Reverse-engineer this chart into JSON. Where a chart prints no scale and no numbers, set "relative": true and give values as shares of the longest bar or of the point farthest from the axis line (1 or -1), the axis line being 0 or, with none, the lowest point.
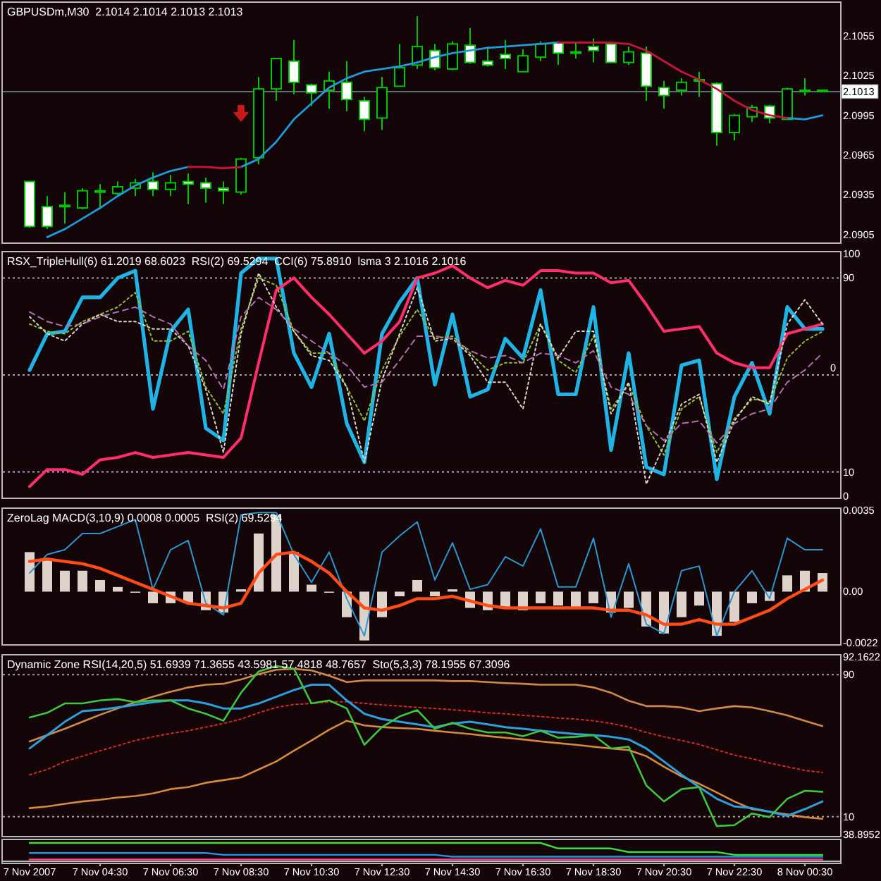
{
  "chart_data": [
    {
      "type": "candlestick",
      "title": "GBPUSDm,M30  2.1014 2.1014 2.1013 2.1013",
      "categories": [
        null,
        null,
        null,
        null,
        null,
        null,
        null,
        null,
        null,
        null,
        null,
        null,
        null,
        null,
        null,
        null,
        null,
        null,
        null,
        null,
        null,
        null,
        null,
        null,
        null,
        null,
        null,
        null,
        null,
        null,
        null,
        null,
        null,
        null,
        null,
        null,
        null,
        null,
        null,
        null,
        null,
        null,
        null,
        null,
        null,
        null
      ],
      "ylim": [
        2.09,
        2.1079
      ],
      "yticks": [
        2.1055,
        2.1025,
        2.0995,
        2.0965,
        2.0935,
        2.0905
      ],
      "tick_labels": "y",
      "ref_lines": [
        {
          "axis": "y",
          "value": 2.1013,
          "label": "2.1013",
          "color": "#5f7070",
          "line_style": "solid"
        }
      ],
      "series": [
        {
          "color": "#00c800",
          "colors": [
            "#ffffff",
            "#ffffff",
            "#ffffff",
            "#000000",
            "#000000",
            "#000000",
            "#000000",
            "#ffffff",
            "#000000",
            "#ffffff",
            "#ffffff",
            "#ffffff",
            "#000000",
            "#000000",
            "#000000",
            "#ffffff",
            "#ffffff",
            "#000000",
            "#ffffff",
            "#ffffff",
            "#000000",
            "#000000",
            "#000000",
            "#ffffff",
            "#000000",
            "#ffffff",
            "#ffffff",
            "#ffffff",
            "#000000",
            "#000000",
            "#ffffff",
            "#000000",
            "#ffffff",
            "#ffffff",
            "#000000",
            "#ffffff",
            "#ffffff",
            "#000000",
            "#000000",
            "#ffffff",
            "#000000",
            "#000000",
            "#ffffff",
            "#000000",
            "#000000",
            "#ffffff"
          ],
          "ohlc": [
            [
              2.0945,
              2.0945,
              2.091,
              2.0911
            ],
            [
              2.0926,
              2.0934,
              2.0909,
              2.0911
            ],
            [
              2.0927,
              2.0937,
              2.0913,
              2.0927
            ],
            [
              2.0925,
              2.094,
              2.0924,
              2.0938
            ],
            [
              2.0937,
              2.0943,
              2.0924,
              2.0938
            ],
            [
              2.0936,
              2.0945,
              2.0935,
              2.0941
            ],
            [
              2.094,
              2.0947,
              2.0934,
              2.0944
            ],
            [
              2.0945,
              2.0952,
              2.0934,
              2.0939
            ],
            [
              2.0939,
              2.095,
              2.0934,
              2.0944
            ],
            [
              2.0945,
              2.0951,
              2.0928,
              2.0943
            ],
            [
              2.0944,
              2.0948,
              2.0929,
              2.094
            ],
            [
              2.094,
              2.0945,
              2.0928,
              2.0938
            ],
            [
              2.0937,
              2.0963,
              2.0935,
              2.0962
            ],
            [
              2.0963,
              2.1024,
              2.0958,
              2.1015
            ],
            [
              2.1015,
              2.1038,
              2.1006,
              2.1038
            ],
            [
              2.1036,
              2.1052,
              2.1011,
              2.102
            ],
            [
              2.1018,
              2.1019,
              2.1002,
              2.1012
            ],
            [
              2.1014,
              2.1028,
              2.1,
              2.1021
            ],
            [
              2.102,
              2.1036,
              2.0998,
              2.1007
            ],
            [
              2.1006,
              2.1009,
              2.0983,
              2.0992
            ],
            [
              2.0993,
              2.1024,
              2.0984,
              2.1016
            ],
            [
              2.1017,
              2.1049,
              2.1017,
              2.1031
            ],
            [
              2.1033,
              2.107,
              2.103,
              2.1047
            ],
            [
              2.1044,
              2.1049,
              2.1029,
              2.1031
            ],
            [
              2.103,
              2.1051,
              2.1029,
              2.1049
            ],
            [
              2.1048,
              2.1061,
              2.1034,
              2.1035
            ],
            [
              2.1036,
              2.1047,
              2.1032,
              2.1033
            ],
            [
              2.1041,
              2.1052,
              2.103,
              2.1038
            ],
            [
              2.1028,
              2.1045,
              2.1028,
              2.104
            ],
            [
              2.1039,
              2.1051,
              2.1036,
              2.1049
            ],
            [
              2.105,
              2.1051,
              2.1033,
              2.1042
            ],
            [
              2.1042,
              2.105,
              2.1038,
              2.1043
            ],
            [
              2.1047,
              2.1053,
              2.1035,
              2.1044
            ],
            [
              2.1049,
              2.1049,
              2.1035,
              2.1035
            ],
            [
              2.1035,
              2.1047,
              2.1033,
              2.1043
            ],
            [
              2.1042,
              2.1047,
              2.1006,
              2.1017
            ],
            [
              2.1016,
              2.1021,
              2.1,
              2.101
            ],
            [
              2.1014,
              2.1023,
              2.101,
              2.102
            ],
            [
              2.1021,
              2.1028,
              2.1009,
              2.1022
            ],
            [
              2.1019,
              2.102,
              2.0972,
              2.0982
            ],
            [
              2.0982,
              2.0996,
              2.0976,
              2.0995
            ],
            [
              2.0994,
              2.1003,
              2.099,
              2.1001
            ],
            [
              2.1002,
              2.1003,
              2.0989,
              2.0993
            ],
            [
              2.0992,
              2.1016,
              2.0992,
              2.1015
            ],
            [
              2.1013,
              2.1023,
              2.101,
              2.1014
            ],
            [
              2.1014,
              2.1014,
              2.1013,
              2.1013
            ]
          ]
        },
        {
          "type": "line",
          "color": "#1e9bd7",
          "values": [
            null,
            2.0903,
            2.0909,
            2.0917,
            2.0925,
            2.0934,
            2.0942,
            2.0948,
            2.0953,
            2.0956,
            null,
            null,
            2.0956,
            2.0962,
            2.0975,
            2.0992,
            2.1004,
            2.1016,
            2.1023,
            2.1028,
            2.103,
            2.1032,
            2.1035,
            2.1039,
            2.1042,
            2.1044,
            2.1046,
            2.1047,
            2.1048,
            2.1049,
            2.105,
            null,
            null,
            null,
            null,
            null,
            null,
            null,
            null,
            null,
            null,
            null,
            null,
            2.0993,
            2.0992,
            2.0995
          ]
        },
        {
          "type": "line",
          "color": "#c8143c",
          "values": [
            null,
            null,
            null,
            null,
            null,
            null,
            null,
            null,
            null,
            2.0956,
            2.0956,
            2.0955,
            2.0956,
            null,
            null,
            null,
            null,
            null,
            null,
            null,
            null,
            null,
            null,
            null,
            null,
            null,
            null,
            null,
            null,
            null,
            2.105,
            2.105,
            2.105,
            2.105,
            2.1049,
            2.1044,
            2.1036,
            2.1028,
            2.1022,
            2.1015,
            2.1006,
            2.0999,
            2.0995,
            2.0993,
            null,
            null
          ]
        },
        {
          "type": "scatter",
          "marker": "triangle",
          "color": "#c81818",
          "values": [
            null,
            null,
            null,
            null,
            null,
            null,
            null,
            null,
            null,
            null,
            null,
            null,
            2.0996,
            null,
            null,
            null,
            null,
            null,
            null,
            null,
            null,
            null,
            null,
            null,
            null,
            null,
            null,
            null,
            null,
            null,
            null,
            null,
            null,
            null,
            null,
            null,
            null,
            null,
            null,
            null,
            null,
            null,
            null,
            null,
            null,
            null
          ]
        }
      ]
    },
    {
      "type": "line",
      "title": "RSX_TripleHull(6) 61.2019 68.6023  RSI(2) 69.5294  CCI(6) 75.8910  lsma 3 2.1016 2.1016",
      "categories": [
        null,
        null,
        null,
        null,
        null,
        null,
        null,
        null,
        null,
        null,
        null,
        null,
        null,
        null,
        null,
        null,
        null,
        null,
        null,
        null,
        null,
        null,
        null,
        null,
        null,
        null,
        null,
        null,
        null,
        null,
        null,
        null,
        null,
        null,
        null,
        null,
        null,
        null,
        null,
        null,
        null,
        null,
        null,
        null,
        null,
        null
      ],
      "ylim": [
        0,
        100
      ],
      "yticks": [
        100,
        90,
        10,
        0
      ],
      "tick_labels": "y",
      "ref_lines": [
        {
          "axis": "y",
          "value": 90,
          "color": "#a0a0a0",
          "line_style": "dotted"
        },
        {
          "axis": "y",
          "value": 50,
          "color": "#a0a0a0",
          "line_style": "dotted"
        },
        {
          "axis": "y",
          "value": 10,
          "color": "#a8a8d8",
          "line_style": "dotted"
        }
      ],
      "annotations": [
        {
          "text": "0",
          "y": 50
        }
      ],
      "series": [
        {
          "color": "#1eb4e6",
          "line_style": "solid",
          "values": [
            52,
            67,
            68,
            82,
            82,
            90,
            93,
            36,
            68,
            77,
            28,
            23,
            92,
            98,
            98,
            59,
            45,
            67,
            30,
            14,
            67,
            80,
            90,
            46,
            75,
            41,
            44,
            65,
            57,
            85,
            42,
            42,
            78,
            19,
            59,
            12,
            9,
            54,
            56,
            7,
            41,
            55,
            34,
            78,
            69,
            69
          ]
        },
        {
          "color": "#ff2d6e",
          "line_style": "solid",
          "values": [
            4,
            11,
            11,
            9,
            15,
            16,
            18,
            16,
            17,
            18,
            17,
            16,
            24,
            55,
            85,
            90,
            82,
            75,
            67,
            59,
            64,
            72,
            90,
            92,
            95,
            90,
            86,
            89,
            87,
            93,
            93,
            92,
            92,
            88,
            89,
            79,
            68,
            69,
            70,
            59,
            55,
            53,
            53,
            67,
            69,
            71
          ]
        },
        {
          "color": "#90c030",
          "line_style": "dotted",
          "values": [
            71,
            68,
            67,
            72,
            75,
            78,
            84,
            64,
            64,
            68,
            45,
            34,
            69,
            90,
            87,
            68,
            59,
            59,
            45,
            31,
            52,
            66,
            77,
            65,
            66,
            59,
            52,
            55,
            55,
            71,
            56,
            51,
            66,
            36,
            46,
            29,
            17,
            36,
            41,
            18,
            32,
            40,
            39,
            57,
            64,
            68
          ]
        },
        {
          "color": "#d8d8c0",
          "line_style": "dotted",
          "values": [
            74,
            67,
            64,
            71,
            75,
            72,
            72,
            69,
            69,
            62,
            44,
            18,
            67,
            92,
            78,
            68,
            58,
            56,
            45,
            14,
            48,
            67,
            86,
            64,
            65,
            58,
            47,
            47,
            36,
            71,
            57,
            68,
            68,
            34,
            47,
            5,
            21,
            38,
            42,
            14,
            31,
            41,
            38,
            71,
            81,
            71
          ]
        },
        {
          "color": "#b070b0",
          "line_style": "dashed",
          "values": [
            76,
            72,
            70,
            71,
            74,
            76,
            78,
            74,
            71,
            62,
            56,
            44,
            74,
            82,
            77,
            69,
            64,
            59,
            54,
            45,
            47,
            56,
            66,
            66,
            65,
            60,
            57,
            58,
            55,
            59,
            58,
            55,
            60,
            45,
            42,
            29,
            23,
            30,
            31,
            22,
            30,
            34,
            36,
            47,
            52,
            59
          ]
        }
      ]
    },
    {
      "type": "bar",
      "title": "ZeroLag MACD(3,10,9) 0.0008 0.0005  RSI(2) 69.5294",
      "categories": [
        null,
        null,
        null,
        null,
        null,
        null,
        null,
        null,
        null,
        null,
        null,
        null,
        null,
        null,
        null,
        null,
        null,
        null,
        null,
        null,
        null,
        null,
        null,
        null,
        null,
        null,
        null,
        null,
        null,
        null,
        null,
        null,
        null,
        null,
        null,
        null,
        null,
        null,
        null,
        null,
        null,
        null,
        null,
        null,
        null,
        null
      ],
      "ylim": [
        -0.0022,
        0.0035
      ],
      "yticks": [
        0.0035,
        {
          "value": 0,
          "label": "0.00"
        },
        -0.0022
      ],
      "tick_labels": "y",
      "series": [
        {
          "color": "#ddd3cb",
          "values": [
            0.0017,
            0.0014,
            0.0009,
            0.0009,
            0.0005,
            0.0002,
            0,
            -0.0005,
            -0.0005,
            -0.0005,
            -0.0008,
            -0.0009,
            0.0001,
            0.0025,
            0.0033,
            0.0017,
            0.0003,
            0,
            -0.0011,
            -0.0021,
            -0.0011,
            -0.0002,
            0.0005,
            -0.0002,
            0.0001,
            -0.0007,
            -0.0008,
            -0.0007,
            -0.0008,
            -0.0005,
            -0.0006,
            -0.0007,
            -0.0005,
            -0.0009,
            -0.0007,
            -0.0015,
            -0.0018,
            -0.0011,
            -0.0006,
            -0.0019,
            -0.0013,
            -0.0005,
            -0.0004,
            0.0007,
            0.0009,
            0.0008
          ]
        },
        {
          "type": "line",
          "color": "#2b96cf",
          "values": [
            0.0008,
            0.0016,
            0.0018,
            0.0025,
            0.0025,
            0.0028,
            0.0031,
            0.0001,
            0.0018,
            0.0022,
            -0.0005,
            -0.001,
            0.0033,
            0.0034,
            0.0034,
            0.0016,
            0.0004,
            0.0017,
            -0.0003,
            -0.0019,
            0.0017,
            0.0024,
            0.003,
            0.0005,
            0.0021,
            0.0001,
            0.0003,
            0.0015,
            0.0011,
            0.0027,
            0.0002,
            0.0002,
            0.0023,
            -0.0011,
            0.0012,
            -0.0014,
            -0.0018,
            0.0009,
            0.0011,
            -0.0019,
            0,
            0.0009,
            -0.0003,
            0.0023,
            0.0018,
            0.0018
          ]
        },
        {
          "type": "line",
          "color": "#ff4b14",
          "values": [
            0.0013,
            0.0014,
            0.0013,
            0.0012,
            0.001,
            0.0007,
            0.0004,
            0.0001,
            -0.0002,
            -0.0005,
            -0.0006,
            -0.0007,
            -0.0005,
            0.0008,
            0.0016,
            0.0017,
            0.0013,
            0.0008,
            0,
            -0.0007,
            -0.0008,
            -0.0006,
            -0.0003,
            -0.0003,
            -0.0002,
            -0.0004,
            -0.0006,
            -0.0007,
            -0.0007,
            -0.0007,
            -0.0007,
            -0.0007,
            -0.0007,
            -0.0008,
            -0.0008,
            -0.001,
            -0.0014,
            -0.0014,
            -0.0012,
            -0.0014,
            -0.0014,
            -0.0011,
            -0.0008,
            -0.0003,
            0.0001,
            0.0005
          ]
        }
      ]
    },
    {
      "type": "line",
      "title": "Dynamic Zone RSI(14,20,5) 51.6939 71.3655 43.5981 57.4818 48.7657  Sto(5,3,3) 78.1955 67.3096",
      "categories": [
        null,
        null,
        null,
        null,
        null,
        null,
        null,
        null,
        null,
        null,
        null,
        null,
        null,
        null,
        null,
        null,
        null,
        null,
        null,
        null,
        null,
        null,
        null,
        null,
        null,
        null,
        null,
        null,
        null,
        null,
        null,
        null,
        null,
        null,
        null,
        null,
        null,
        null,
        null,
        null,
        null,
        null,
        null,
        null,
        null,
        null
      ],
      "ylim": [
        38.8952,
        92.1622
      ],
      "yticks": [
        92.1622,
        38.8952
      ],
      "y2lim": [
        0,
        100
      ],
      "y2ticks": [
        90,
        10
      ],
      "tick_labels": "y",
      "ref_lines": [
        {
          "axis": "y2",
          "value": 90,
          "color": "#a0a0a0",
          "line_style": "dotted"
        },
        {
          "axis": "y2",
          "value": 10,
          "color": "#a0a0a0",
          "line_style": "dotted"
        }
      ],
      "series": [
        {
          "color": "#d08a48",
          "line_style": "solid",
          "values": [
            66.8,
            68.7,
            70.6,
            72.7,
            74.8,
            76.7,
            78.6,
            80.2,
            81.7,
            83.0,
            83.8,
            84.1,
            85.4,
            87.0,
            88.3,
            88.6,
            88.1,
            86.5,
            84.6,
            85.1,
            85.1,
            85.1,
            85.1,
            85.1,
            84.9,
            84.9,
            84.6,
            84.3,
            84.1,
            83.8,
            83.8,
            83.8,
            83.0,
            81.4,
            79.0,
            77.4,
            77.4,
            77.0,
            75.9,
            76.7,
            77.4,
            77.0,
            75.9,
            74.6,
            73.0,
            71.4
          ]
        },
        {
          "color": "#d22828",
          "line_style": "dotted",
          "values": [
            56.8,
            58.4,
            60.8,
            62.4,
            64.0,
            65.5,
            67.1,
            68.2,
            69.2,
            70.0,
            71.1,
            72.2,
            73.5,
            75.4,
            77.0,
            77.9,
            78.2,
            78.7,
            78.7,
            78.2,
            77.8,
            77.4,
            77.0,
            76.7,
            76.3,
            75.9,
            75.4,
            75.1,
            74.6,
            74.3,
            73.8,
            73.5,
            73.0,
            72.2,
            71.1,
            69.5,
            68.2,
            67.1,
            65.9,
            64.3,
            62.7,
            61.6,
            60.3,
            59.2,
            58.1,
            57.5
          ]
        },
        {
          "color": "#d8893c",
          "line_style": "solid",
          "values": [
            46.8,
            47.3,
            48.1,
            48.8,
            49.3,
            50.0,
            50.4,
            51.2,
            52.5,
            53.1,
            54.4,
            55.2,
            56.0,
            58.4,
            60.8,
            64.0,
            67.1,
            70.3,
            73.0,
            71.6,
            71.1,
            70.8,
            70.6,
            70.0,
            69.5,
            69.0,
            68.4,
            67.9,
            67.4,
            66.8,
            66.3,
            65.8,
            65.2,
            64.7,
            64.2,
            62.4,
            59.2,
            56.3,
            54.1,
            51.5,
            48.8,
            46.5,
            45.7,
            44.9,
            44.1,
            43.6
          ]
        },
        {
          "color": "#2aa0dc",
          "line_style": "solid",
          "values": [
            64.7,
            68.7,
            72.7,
            75.9,
            76.3,
            77.0,
            77.8,
            78.6,
            79.1,
            79.1,
            78.2,
            76.7,
            76.7,
            78.2,
            80.2,
            82.2,
            83.8,
            83.8,
            79.1,
            75.1,
            73.5,
            72.7,
            71.9,
            71.1,
            72.2,
            72.7,
            71.9,
            71.1,
            70.6,
            70.0,
            69.5,
            69.0,
            68.7,
            68.2,
            67.4,
            64.7,
            60.8,
            56.8,
            53.1,
            49.6,
            47.3,
            46.8,
            45.7,
            44.5,
            46.5,
            48.8
          ]
        },
        {
          "color": "#3cc83c",
          "line_style": "solid",
          "values": [
            74.0,
            75.4,
            78.2,
            78.2,
            79.1,
            79.5,
            78.6,
            79.1,
            79.1,
            76.7,
            75.1,
            73.0,
            81.4,
            87.8,
            89.4,
            88.6,
            78.2,
            79.1,
            76.7,
            65.8,
            71.1,
            74.3,
            76.2,
            70.6,
            72.4,
            70.6,
            69.5,
            69.5,
            68.4,
            70.0,
            67.9,
            68.2,
            68.7,
            64.7,
            65.2,
            53.6,
            48.8,
            52.5,
            53.1,
            41.4,
            41.7,
            45.2,
            44.1,
            49.6,
            52.0,
            51.7
          ]
        }
      ]
    },
    {
      "type": "line",
      "relative": true,
      "categories": [
        "7 Nov 2007",
        null,
        null,
        null,
        "7 Nov 04:30",
        null,
        null,
        null,
        "7 Nov 06:30",
        null,
        null,
        null,
        "7 Nov 08:30",
        null,
        null,
        null,
        "7 Nov 10:30",
        null,
        null,
        null,
        "7 Nov 12:30",
        null,
        null,
        null,
        "7 Nov 14:30",
        null,
        null,
        null,
        "7 Nov 16:30",
        null,
        null,
        null,
        "7 Nov 18:30",
        null,
        null,
        null,
        "7 Nov 20:30",
        null,
        null,
        null,
        "7 Nov 22:30",
        null,
        null,
        null,
        "8 Nov 00:30",
        null
      ],
      "series": [
        {
          "color": "#38e038",
          "values": [
            1,
            1,
            1,
            1,
            1,
            1,
            1,
            1,
            1,
            1,
            1,
            1,
            1,
            1,
            1,
            1,
            1,
            1,
            1,
            1,
            1,
            1,
            1,
            1,
            1,
            1,
            1,
            1,
            1,
            1,
            0.7,
            0.7,
            0.7,
            0.7,
            0.5,
            0.5,
            0.5,
            0.5,
            0.5,
            0.5,
            0.35,
            0.35,
            0.35,
            0.35,
            0.35,
            0.35
          ]
        },
        {
          "color": "#2496e0",
          "values": [
            0.45,
            0.45,
            0.45,
            0.45,
            0.45,
            0.45,
            0.45,
            0.45,
            0.45,
            0.45,
            0.45,
            0.35,
            0.35,
            0.35,
            0.35,
            0.35,
            0.35,
            0.35,
            0.35,
            0.35,
            0.35,
            0.35,
            0.35,
            0.35,
            0.25,
            0.25,
            0.25,
            0.25,
            0.25,
            0.25,
            0.25,
            0.25,
            0.25,
            0.25,
            0.25,
            0.25,
            0.25,
            0.25,
            0.25,
            0.25,
            0.25,
            0.25,
            0.25,
            0.25,
            0.25,
            0.25
          ]
        },
        {
          "color": "#ff3c8c",
          "values": [
            0.1,
            0.1,
            0.1,
            0.1,
            0.1,
            0.1,
            0.1,
            0.1,
            0.1,
            0.1,
            0.1,
            0.1,
            0.1,
            0.1,
            0.1,
            0.1,
            0.1,
            0.1,
            0.1,
            0.1,
            0.1,
            0.1,
            0.1,
            0.1,
            0.1,
            0.1,
            0.1,
            0.1,
            0.1,
            0.1,
            0.1,
            0.1,
            0.1,
            0.1,
            0.1,
            0.1,
            0.1,
            0.1,
            0.1,
            0.1,
            0.1,
            0.1,
            0.1,
            0.1,
            0.1,
            0.1
          ]
        }
      ]
    }
  ]
}
